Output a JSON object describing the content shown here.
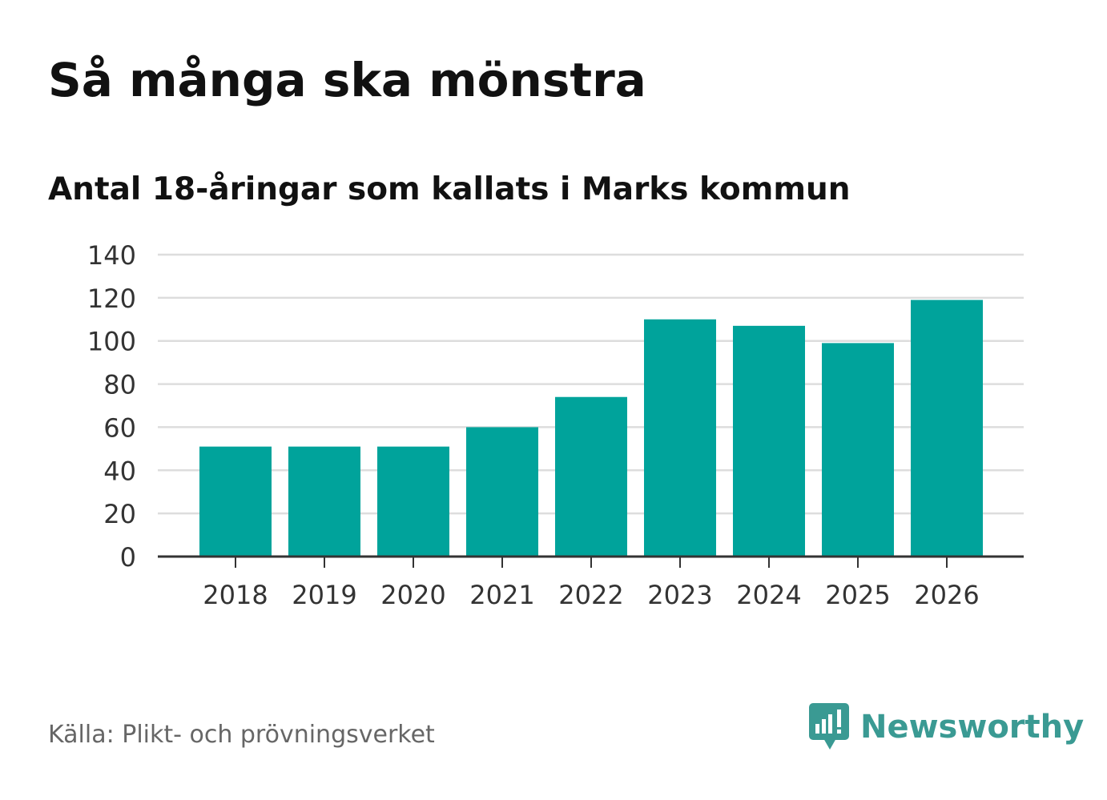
{
  "title": "Så många ska mönstra",
  "subtitle": "Antal 18-åringar som kallats i Marks kommun",
  "source": "Källa: Plikt- och prövningsverket",
  "brand": {
    "name": "Newsworthy",
    "icon": "newsworthy-logo-icon",
    "color": "#3a9a93"
  },
  "colors": {
    "bar": "#00a39b",
    "grid": "#dddddd",
    "axis": "#333333",
    "text": "#333333"
  },
  "chart_data": {
    "type": "bar",
    "title": "Så många ska mönstra",
    "subtitle": "Antal 18-åringar som kallats i Marks kommun",
    "xlabel": "",
    "ylabel": "",
    "categories": [
      "2018",
      "2019",
      "2020",
      "2021",
      "2022",
      "2023",
      "2024",
      "2025",
      "2026"
    ],
    "values": [
      51,
      51,
      51,
      60,
      74,
      110,
      107,
      99,
      119
    ],
    "ylim": [
      0,
      140
    ],
    "yticks": [
      0,
      20,
      40,
      60,
      80,
      100,
      120,
      140
    ],
    "grid": true
  }
}
